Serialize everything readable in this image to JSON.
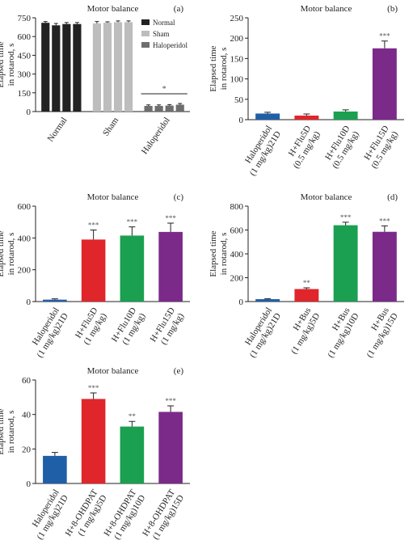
{
  "chart_data": [
    {
      "type": "grouped_bar",
      "title": "Motor balance",
      "panel": "(a)",
      "ylabel": [
        "Elapsed time",
        "in rotarod, s"
      ],
      "ylim": [
        0,
        750
      ],
      "yticks": [
        0,
        150,
        300,
        450,
        600,
        750
      ],
      "groups": [
        {
          "name": "Normal",
          "color": "#222222",
          "values": [
            710,
            690,
            700,
            700
          ],
          "errors": [
            10,
            15,
            12,
            12
          ]
        },
        {
          "name": "Sham",
          "color": "#bdbdbd",
          "values": [
            705,
            710,
            715,
            715
          ],
          "errors": [
            15,
            8,
            10,
            10
          ]
        },
        {
          "name": "Haloperidol",
          "color": "#6e6e6e",
          "values": [
            45,
            45,
            48,
            55
          ],
          "errors": [
            8,
            8,
            8,
            10
          ]
        }
      ],
      "annotation": "*"
    },
    {
      "type": "bar",
      "title": "Motor balance",
      "panel": "(b)",
      "ylabel": [
        "Elapsed time",
        "in rotarod, s"
      ],
      "ylim": [
        0,
        250
      ],
      "yticks": [
        0,
        50,
        100,
        150,
        200,
        250
      ],
      "categories": [
        [
          "Haloperidol",
          "(1 mg/kg)21D"
        ],
        [
          "H+Flu5D",
          "(0.5 mg/kg)"
        ],
        [
          "H+Flu10D",
          "(0.5 mg/kg)"
        ],
        [
          "H+Flu15D",
          "(0.5 mg/kg)"
        ]
      ],
      "values": [
        15,
        10,
        20,
        175
      ],
      "errors": [
        3,
        4,
        4,
        18
      ],
      "colors": [
        "#1f5fa8",
        "#e0252b",
        "#1aa050",
        "#7b2a8a"
      ],
      "annotations": [
        null,
        null,
        null,
        "***"
      ]
    },
    {
      "type": "bar",
      "title": "Motor balance",
      "panel": "(c)",
      "ylabel": [
        "Elapsed time",
        "in rotarod, s"
      ],
      "ylim": [
        0,
        600
      ],
      "yticks": [
        0,
        200,
        400,
        600
      ],
      "categories": [
        [
          "Haloperidol",
          "(1 mg/kg)21D"
        ],
        [
          "H+Flu5D",
          "(1 mg/kg)"
        ],
        [
          "H+Flu10D",
          "(1 mg/kg)"
        ],
        [
          "H+Flu15D",
          "(1 mg/kg)"
        ]
      ],
      "values": [
        12,
        390,
        415,
        438
      ],
      "errors": [
        5,
        60,
        55,
        55
      ],
      "colors": [
        "#1f5fa8",
        "#e0252b",
        "#1aa050",
        "#7b2a8a"
      ],
      "annotations": [
        null,
        "***",
        "***",
        "***"
      ]
    },
    {
      "type": "bar",
      "title": "Motor balance",
      "panel": "(d)",
      "ylabel": [
        "Elapsed time",
        "in rotarod, s"
      ],
      "ylim": [
        0,
        800
      ],
      "yticks": [
        0,
        200,
        400,
        600,
        800
      ],
      "categories": [
        [
          "Haloperidol",
          "(1 mg/kg)21D"
        ],
        [
          "H+Bus",
          "(1 mg/kg)5D"
        ],
        [
          "H+Bus",
          "(1 mg/kg)10D"
        ],
        [
          "H+Bus",
          "(1 mg/kg)15D"
        ]
      ],
      "values": [
        20,
        105,
        640,
        585
      ],
      "errors": [
        5,
        10,
        25,
        50
      ],
      "colors": [
        "#1f5fa8",
        "#e0252b",
        "#1aa050",
        "#7b2a8a"
      ],
      "annotations": [
        null,
        "**",
        "***",
        "***"
      ]
    },
    {
      "type": "bar",
      "title": "Motor balance",
      "panel": "(e)",
      "ylabel": [
        "Elapsed time",
        "in rotarod, s"
      ],
      "ylim": [
        0,
        60
      ],
      "yticks": [
        0,
        20,
        40,
        60
      ],
      "categories": [
        [
          "Haloperidol",
          "(1 mg/kg)21D"
        ],
        [
          "H+8-OHDPAT",
          "(1 mg/kg)5D"
        ],
        [
          "H+8-OHDPAT",
          "(1 mg/kg)10D"
        ],
        [
          "H+8-OHDPAT",
          "(1 mg/kg)15D"
        ]
      ],
      "values": [
        16,
        49,
        33,
        41.5
      ],
      "errors": [
        2,
        3.5,
        3,
        3.5
      ],
      "colors": [
        "#1f5fa8",
        "#e0252b",
        "#1aa050",
        "#7b2a8a"
      ],
      "annotations": [
        null,
        "***",
        "**",
        "***"
      ]
    }
  ]
}
